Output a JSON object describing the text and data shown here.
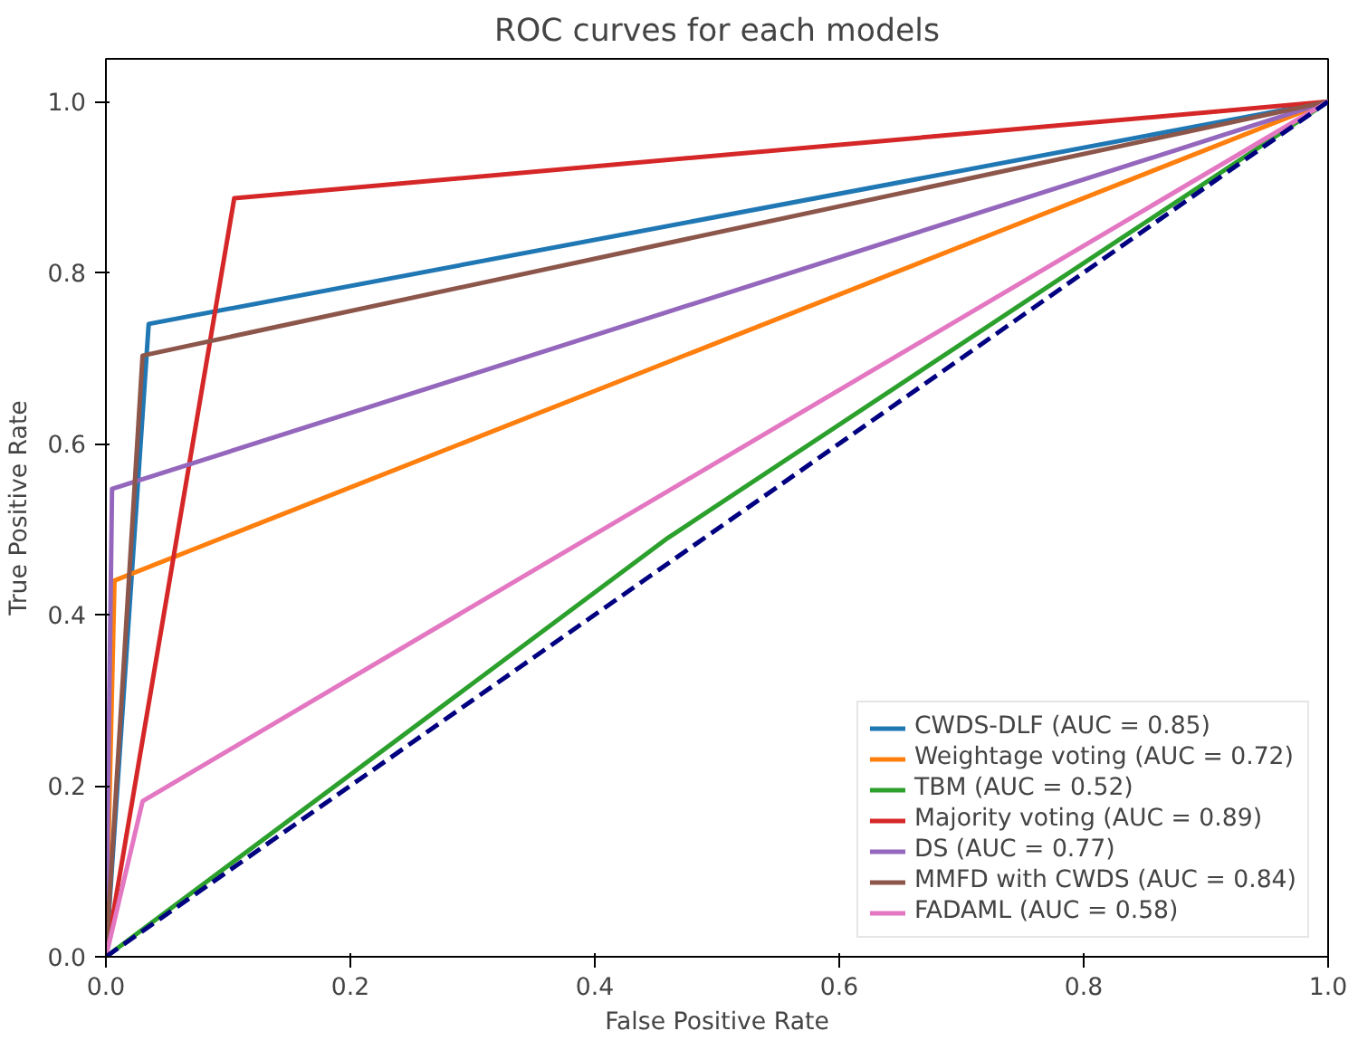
{
  "chart_data": {
    "type": "line",
    "title": "ROC curves for each models",
    "xlabel": "False Positive Rate",
    "ylabel": "True Positive Rate",
    "xlim": [
      0,
      1
    ],
    "ylim": [
      0,
      1.05
    ],
    "xticks": [
      {
        "value": 0,
        "label": "0.0"
      },
      0.2,
      0.4,
      0.6,
      0.8,
      {
        "value": 1,
        "label": "1.0"
      }
    ],
    "yticks": [
      {
        "value": 0,
        "label": "0.0"
      },
      0.2,
      0.4,
      0.6,
      0.8,
      {
        "value": 1,
        "label": "1.0"
      }
    ],
    "legend": "bottom right",
    "grid": false,
    "series": [
      {
        "name": "CWDS-DLF (AUC = 0.85)",
        "color": "#1f77b4",
        "x": [
          0,
          0.035,
          1
        ],
        "values": [
          0,
          0.74,
          1
        ]
      },
      {
        "name": "Weightage voting (AUC = 0.72)",
        "color": "#ff7f0e",
        "x": [
          0,
          0.007,
          1
        ],
        "values": [
          0,
          0.44,
          1
        ]
      },
      {
        "name": "TBM (AUC = 0.52)",
        "color": "#2ca02c",
        "x": [
          0,
          0.46,
          1
        ],
        "values": [
          0,
          0.49,
          1
        ]
      },
      {
        "name": "Majority voting (AUC = 0.89)",
        "color": "#d62728",
        "x": [
          0,
          0.105,
          1
        ],
        "values": [
          0,
          0.887,
          1
        ]
      },
      {
        "name": "DS (AUC = 0.77)",
        "color": "#9467bd",
        "x": [
          0,
          0.005,
          1
        ],
        "values": [
          0,
          0.547,
          1
        ]
      },
      {
        "name": "MMFD with CWDS (AUC = 0.84)",
        "color": "#8c564b",
        "x": [
          0,
          0.03,
          1
        ],
        "values": [
          0,
          0.703,
          1
        ]
      },
      {
        "name": "FADAML (AUC = 0.58)",
        "color": "#e377c2",
        "x": [
          0,
          0.03,
          1
        ],
        "values": [
          0,
          0.182,
          1
        ]
      },
      {
        "color": "#000080",
        "x": [
          0,
          1
        ],
        "values": [
          0,
          1
        ],
        "line_style": "dashed"
      }
    ]
  }
}
